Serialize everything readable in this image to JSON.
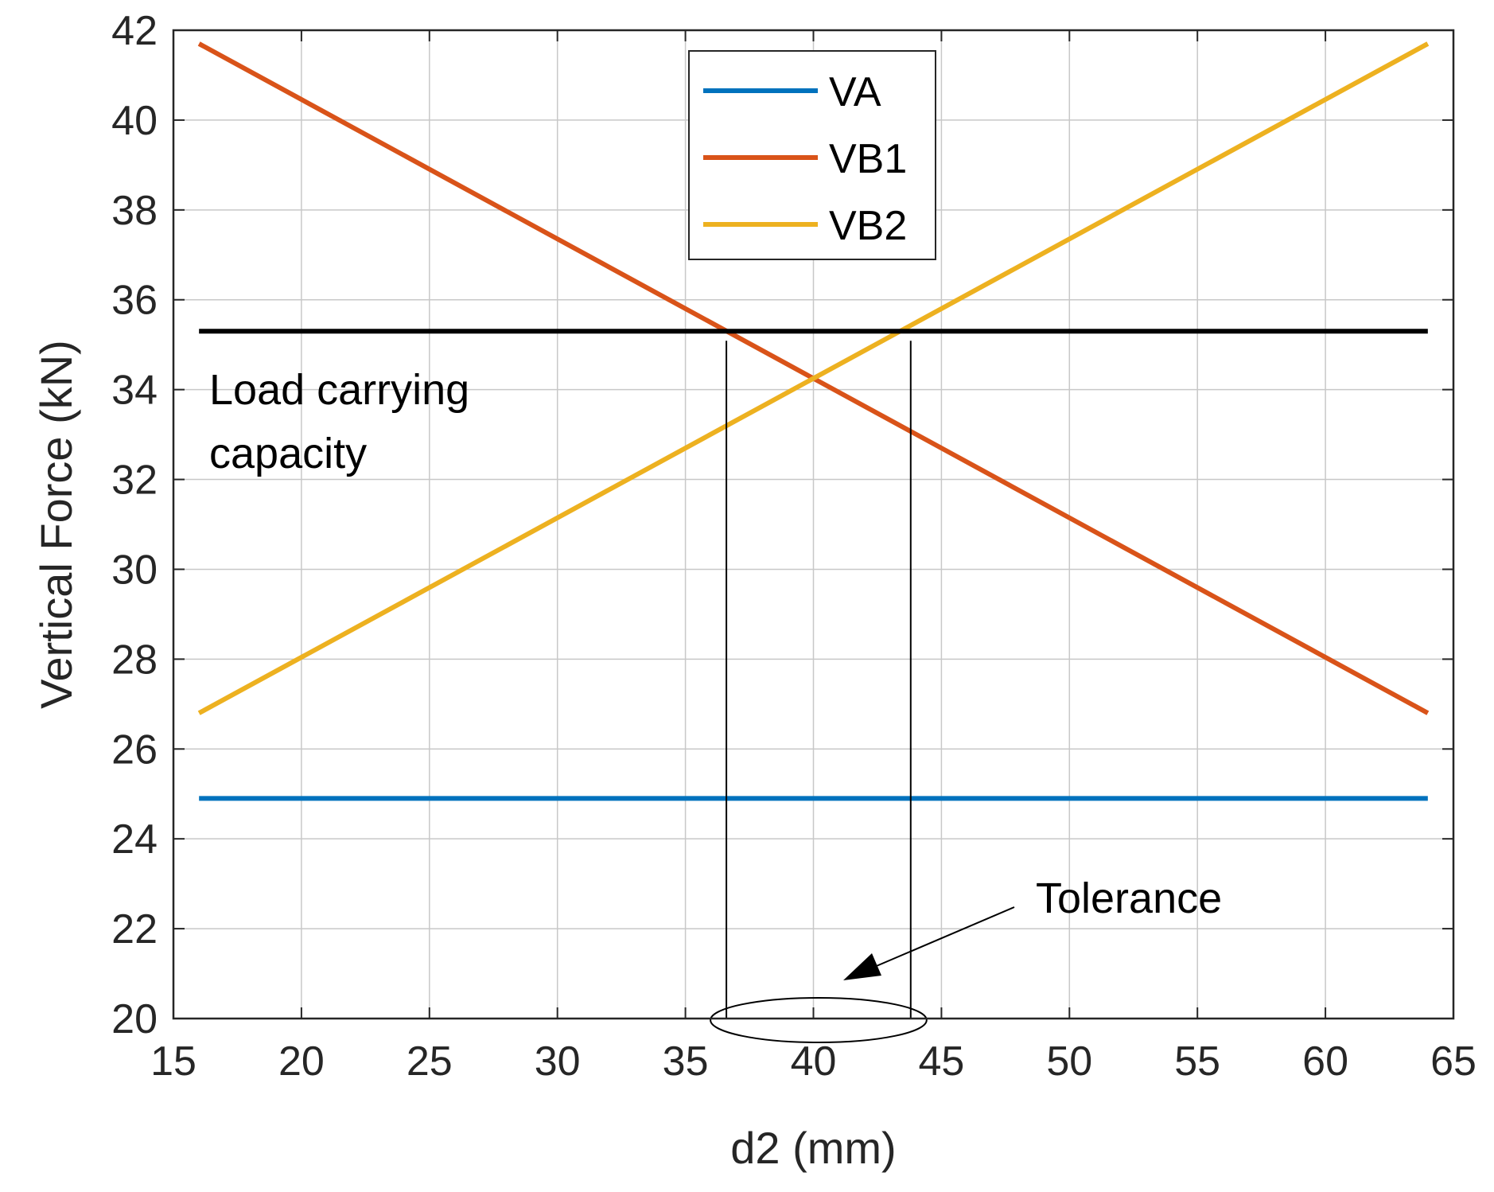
{
  "chart_data": {
    "type": "line",
    "title": "",
    "xlabel": "d2 (mm)",
    "ylabel": "Vertical Force (kN)",
    "xlim": [
      15,
      65
    ],
    "ylim": [
      20,
      42
    ],
    "xticks": [
      "15",
      "20",
      "25",
      "30",
      "35",
      "40",
      "45",
      "50",
      "55",
      "60",
      "65"
    ],
    "yticks": [
      "20",
      "22",
      "24",
      "26",
      "28",
      "30",
      "32",
      "34",
      "36",
      "38",
      "40",
      "42"
    ],
    "grid": true,
    "legend_position": "top-center",
    "series": [
      {
        "name": "VA",
        "color": "#0072BD",
        "x": [
          16,
          64
        ],
        "y": [
          24.9,
          24.9
        ]
      },
      {
        "name": "VB1",
        "color": "#D95319",
        "x": [
          16,
          64
        ],
        "y": [
          41.7,
          26.8
        ]
      },
      {
        "name": "VB2",
        "color": "#EDB120",
        "x": [
          16,
          64
        ],
        "y": [
          26.8,
          41.7
        ]
      }
    ],
    "reference_line": {
      "label": "Load carrying capacity",
      "label_lines": [
        "Load carrying",
        "capacity"
      ],
      "y": 35.3,
      "x": [
        16,
        64
      ],
      "color": "#000000"
    },
    "tolerance": {
      "label": "Tolerance",
      "x": [
        36.6,
        43.8
      ]
    }
  }
}
